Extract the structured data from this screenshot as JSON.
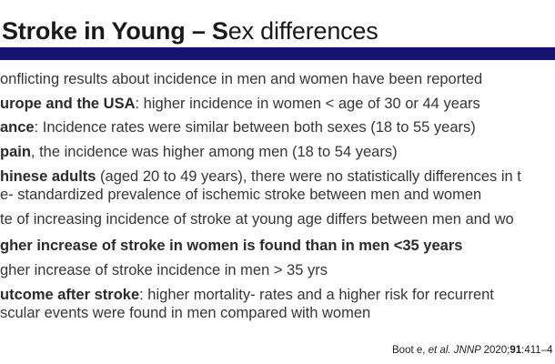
{
  "title": {
    "bold_part": "Stroke in Young – S",
    "regular_part": "ex differences"
  },
  "divider": {
    "color": "#14146e"
  },
  "body": {
    "text_color": "#363636",
    "lines": [
      {
        "bold": "",
        "text": "onflicting results about incidence in men and women have been reported"
      },
      {
        "bold": "urope and the USA",
        "text": ": higher incidence in women < age of 30 or 44 years"
      },
      {
        "bold": "ance",
        "text": ": Incidence rates were similar between both sexes (18 to 55 years)"
      },
      {
        "bold": "pain",
        "text": ", the incidence was higher among men (18 to 54 years)"
      },
      {
        "bold": "hinese adults",
        "text": " (aged 20 to 49 years), there were no statistically differences in t"
      },
      {
        "bold": "",
        "text": "e- standardized prevalence of ischemic stroke between men and women"
      },
      {
        "bold": "",
        "text": "te of increasing incidence of stroke at young age differs between men and wo"
      },
      {
        "bold": "gher increase of stroke in women is found than in men <35 years",
        "text": ""
      },
      {
        "bold": "",
        "text": "gher increase of stroke incidence in men > 35 yrs"
      },
      {
        "bold": "utcome after stroke",
        "text": ": higher mortality- rates and a higher risk for recurrent"
      },
      {
        "bold": "",
        "text": "scular events were found in men compared with women"
      }
    ]
  },
  "citation": {
    "author": "Boot e, ",
    "et_al": "et al. ",
    "journal": "JNNP ",
    "year": "2020;",
    "volume": "91",
    "pages": ":411–4"
  }
}
